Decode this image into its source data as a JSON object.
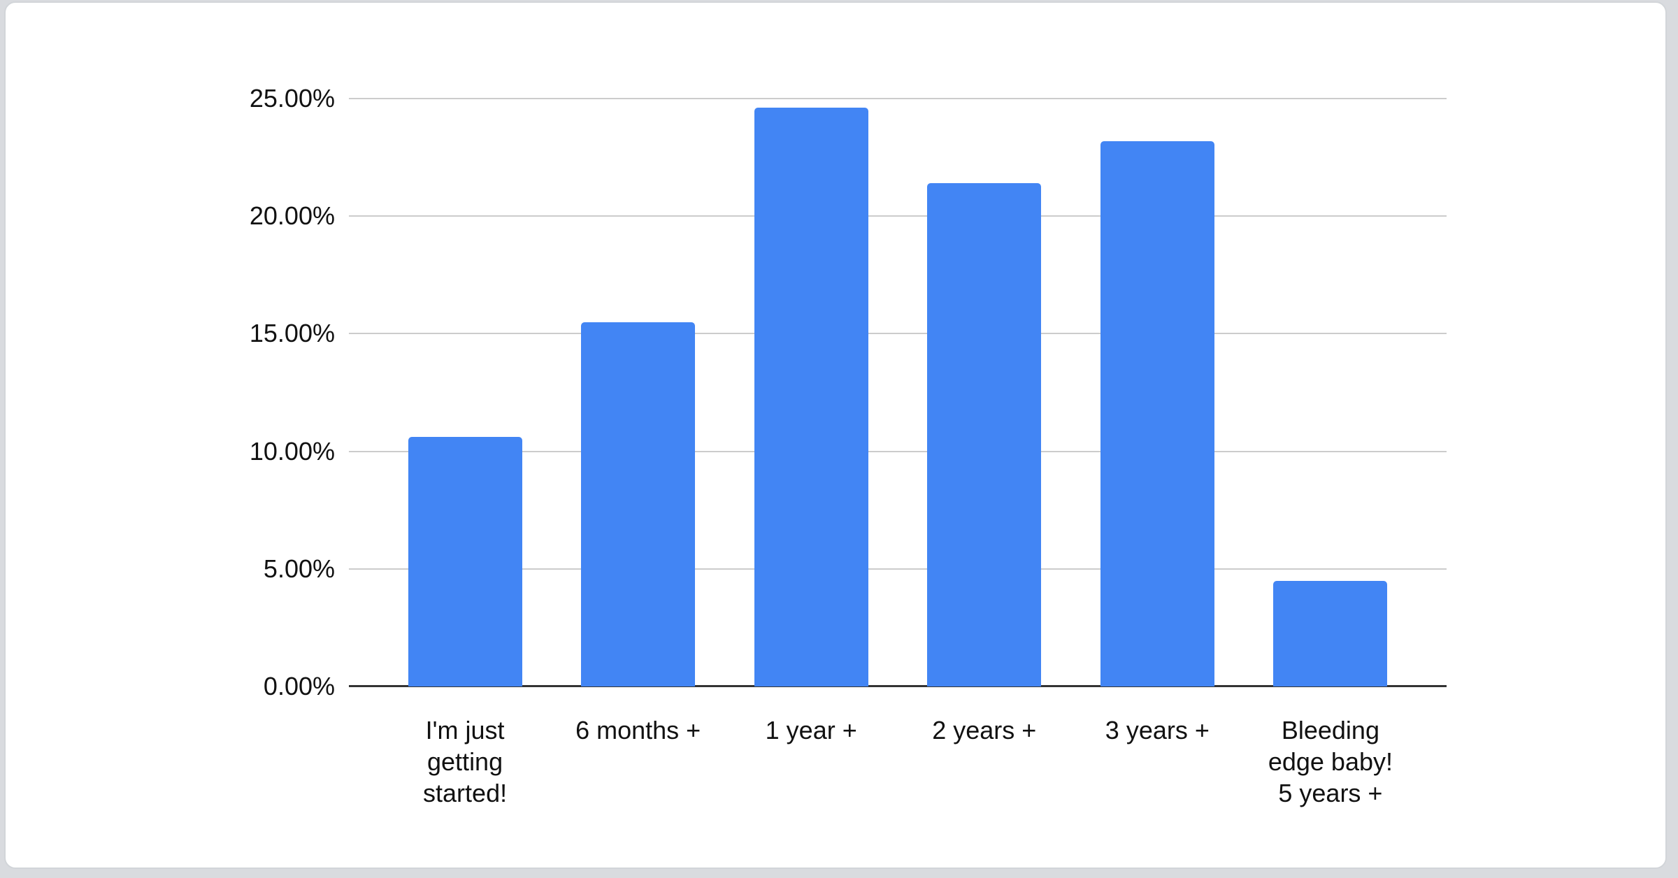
{
  "page": {
    "background_color": "#d9dbdf",
    "card_background": "#ffffff",
    "card_border_color": "#d2d5d9"
  },
  "chart_data": {
    "type": "bar",
    "title": "",
    "xlabel": "",
    "ylabel": "",
    "categories": [
      "I'm just getting started!",
      "6 months +",
      "1 year +",
      "2 years +",
      "3 years +",
      "Bleeding edge baby! 5 years +"
    ],
    "category_lines": [
      [
        "I'm just",
        "getting",
        "started!"
      ],
      [
        "6 months +"
      ],
      [
        "1 year +"
      ],
      [
        "2 years +"
      ],
      [
        "3 years +"
      ],
      [
        "Bleeding",
        "edge baby!",
        "5 years +"
      ]
    ],
    "values": [
      10.6,
      15.5,
      24.6,
      21.4,
      23.2,
      4.5
    ],
    "unit": "%",
    "ylim": [
      0,
      25
    ],
    "ytick_step": 5,
    "ytick_values": [
      25,
      20,
      15,
      10,
      5,
      0
    ],
    "ytick_labels": [
      "25.00%",
      "20.00%",
      "15.00%",
      "10.00%",
      "5.00%",
      "0.00%"
    ],
    "grid": true,
    "legend_position": "none",
    "bar_color": "#4285f4",
    "gridline_color": "#cccccc",
    "axis_line_color": "#333333",
    "label_color": "#111111"
  }
}
